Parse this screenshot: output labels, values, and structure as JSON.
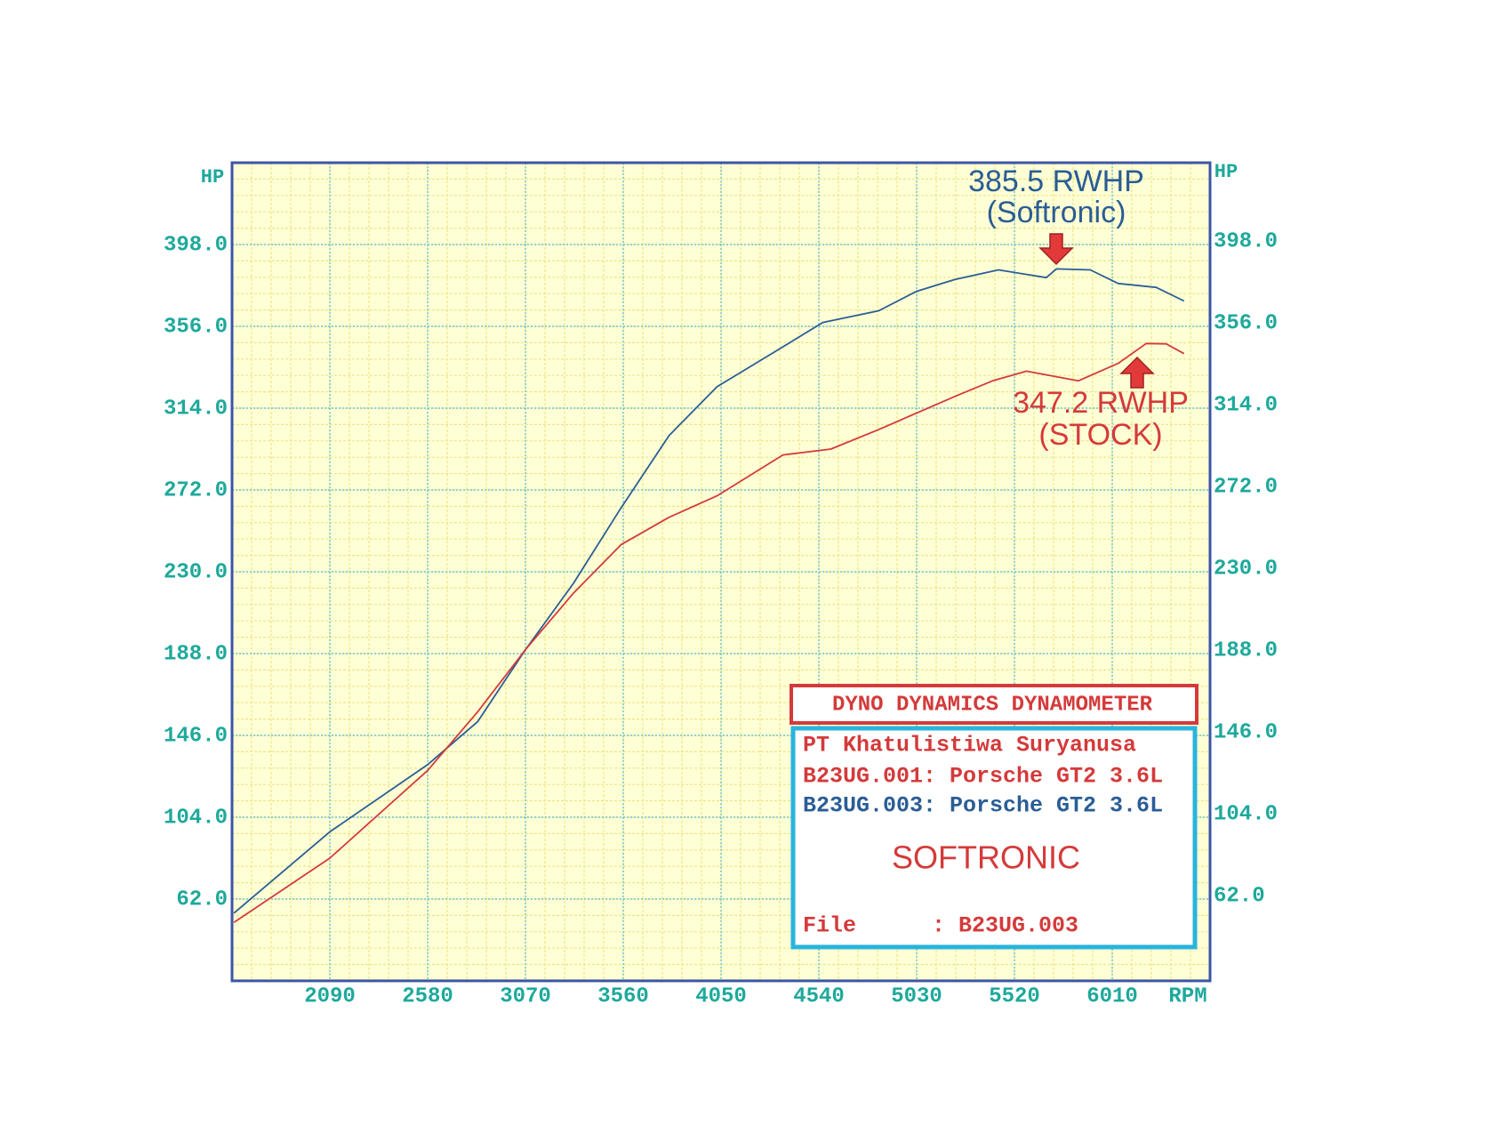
{
  "chart_data": {
    "type": "line",
    "y_label": "HP",
    "x_label": "RPM",
    "xlim": [
      1600,
      6500
    ],
    "xticks": [
      2090,
      2580,
      3070,
      3560,
      4050,
      4540,
      5030,
      5520,
      6010
    ],
    "ylim": [
      20,
      440
    ],
    "yticks": [
      {
        "value": 62,
        "label": "62.0"
      },
      {
        "value": 104,
        "label": "104.0"
      },
      {
        "value": 146,
        "label": "146.0"
      },
      {
        "value": 188,
        "label": "188.0"
      },
      {
        "value": 230,
        "label": "230.0"
      },
      {
        "value": 272,
        "label": "272.0"
      },
      {
        "value": 314,
        "label": "314.0"
      },
      {
        "value": 356,
        "label": "356.0"
      },
      {
        "value": 398,
        "label": "398.0"
      }
    ],
    "grid": true,
    "series": [
      {
        "name": "B23UG.003: Porsche GT2 3.6L",
        "color": "#2a5d95",
        "x": [
          1610,
          2090,
          2580,
          2830,
          3070,
          3310,
          3550,
          3790,
          4030,
          4320,
          4560,
          4840,
          5030,
          5220,
          5440,
          5680,
          5730,
          5900,
          6040,
          6230,
          6370
        ],
        "y": [
          54.8,
          96.5,
          131,
          153,
          190,
          224,
          263,
          300,
          325,
          343,
          358,
          364,
          374,
          380,
          385,
          381,
          385.5,
          385,
          378,
          376,
          369
        ]
      },
      {
        "name": "B23UG.001: Porsche GT2 3.6L",
        "color": "#d43a3a",
        "x": [
          1610,
          2090,
          2580,
          2830,
          3070,
          3310,
          3550,
          3790,
          4030,
          4360,
          4600,
          4840,
          5220,
          5410,
          5580,
          5840,
          6040,
          6180,
          6280,
          6370
        ],
        "y": [
          50,
          83,
          128,
          158,
          190,
          219,
          244,
          258,
          269,
          290,
          293,
          303,
          320,
          328,
          333,
          328,
          337,
          347.2,
          347,
          342
        ]
      }
    ],
    "annotations": [
      {
        "lines": [
          "385.5 RWHP",
          "(Softronic)"
        ],
        "color": "#2a5d95"
      },
      {
        "lines": [
          "347.2 RWHP",
          "(STOCK)"
        ],
        "color": "#d43a3a"
      }
    ],
    "info_box": {
      "header": "DYNO DYNAMICS DYNAMOMETER",
      "company": "PT Khatulistiwa Suryanusa",
      "label": "SOFTRONIC",
      "file_label": "File",
      "file_value": ": B23UG.003"
    }
  }
}
